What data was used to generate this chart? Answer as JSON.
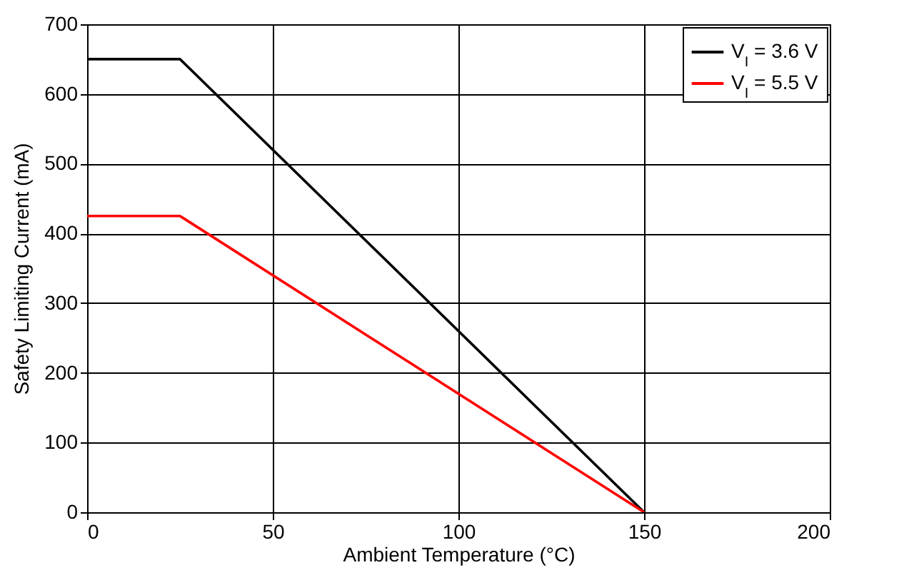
{
  "chart_data": {
    "type": "line",
    "xlabel": "Ambient Temperature (°C)",
    "ylabel": "Safety Limiting Current (mA)",
    "xlim": [
      0,
      200
    ],
    "xticks": [
      0,
      50,
      100,
      150,
      200
    ],
    "ylim": [
      0,
      700
    ],
    "yticks": [
      0,
      100,
      200,
      300,
      400,
      500,
      600,
      700
    ],
    "grid": true,
    "legend": "top right",
    "line_style": "solid",
    "series": [
      {
        "name": "V$_{I}$ = 3.6 V",
        "color": "#000000",
        "x": [
          0,
          25,
          150
        ],
        "values": [
          650,
          650,
          0
        ]
      },
      {
        "name": "V$_{I}$ = 5.5 V",
        "color": "#ff0000",
        "x": [
          0,
          25,
          150
        ],
        "values": [
          425,
          425,
          0
        ]
      }
    ]
  }
}
